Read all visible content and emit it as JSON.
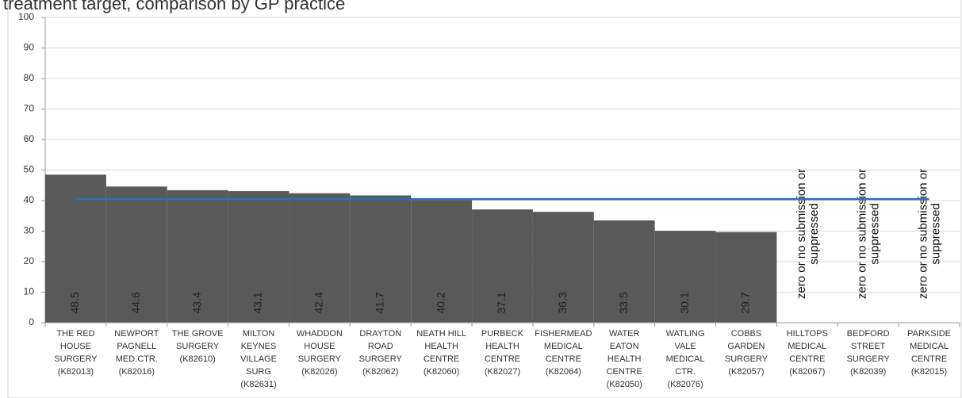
{
  "chart_data": {
    "type": "bar",
    "title": "treatment target, comparison by GP practice",
    "categories": [
      [
        "THE RED",
        "HOUSE",
        "SURGERY",
        "(K82013)"
      ],
      [
        "NEWPORT",
        "PAGNELL",
        "MED.CTR.",
        "(K82016)"
      ],
      [
        "THE GROVE",
        "SURGERY",
        "(K82610)"
      ],
      [
        "MILTON",
        "KEYNES",
        "VILLAGE",
        "SURG",
        "(K82631)"
      ],
      [
        "WHADDON",
        "HOUSE",
        "SURGERY",
        "(K82026)"
      ],
      [
        "DRAYTON",
        "ROAD",
        "SURGERY",
        "(K82062)"
      ],
      [
        "NEATH HILL",
        "HEALTH",
        "CENTRE",
        "(K82060)"
      ],
      [
        "PURBECK",
        "HEALTH",
        "CENTRE",
        "(K82027)"
      ],
      [
        "FISHERMEAD",
        "MEDICAL",
        "CENTRE",
        "(K82064)"
      ],
      [
        "WATER",
        "EATON",
        "HEALTH",
        "CENTRE",
        "(K82050)"
      ],
      [
        "WATLING",
        "VALE",
        "MEDICAL",
        "CTR.",
        "(K82076)"
      ],
      [
        "COBBS",
        "GARDEN",
        "SURGERY",
        "(K82057)"
      ],
      [
        "HILLTOPS",
        "MEDICAL",
        "CENTRE",
        "(K82067)"
      ],
      [
        "BEDFORD",
        "STREET",
        "SURGERY",
        "(K82039)"
      ],
      [
        "PARKSIDE",
        "MEDICAL",
        "CENTRE",
        "(K82015)"
      ]
    ],
    "values": [
      48.5,
      44.6,
      43.4,
      43.1,
      42.4,
      41.7,
      40.2,
      37.1,
      36.3,
      33.5,
      30.1,
      29.7,
      null,
      null,
      null
    ],
    "null_label": [
      "zero or no submission or",
      "suppressed"
    ],
    "color": "#595959",
    "target_line": {
      "value": 40.5,
      "color": "#2e6fb5"
    },
    "ylim": [
      0,
      100
    ],
    "yticks": [
      0,
      10,
      20,
      30,
      40,
      50,
      60,
      70,
      80,
      90,
      100
    ],
    "grid": true
  }
}
